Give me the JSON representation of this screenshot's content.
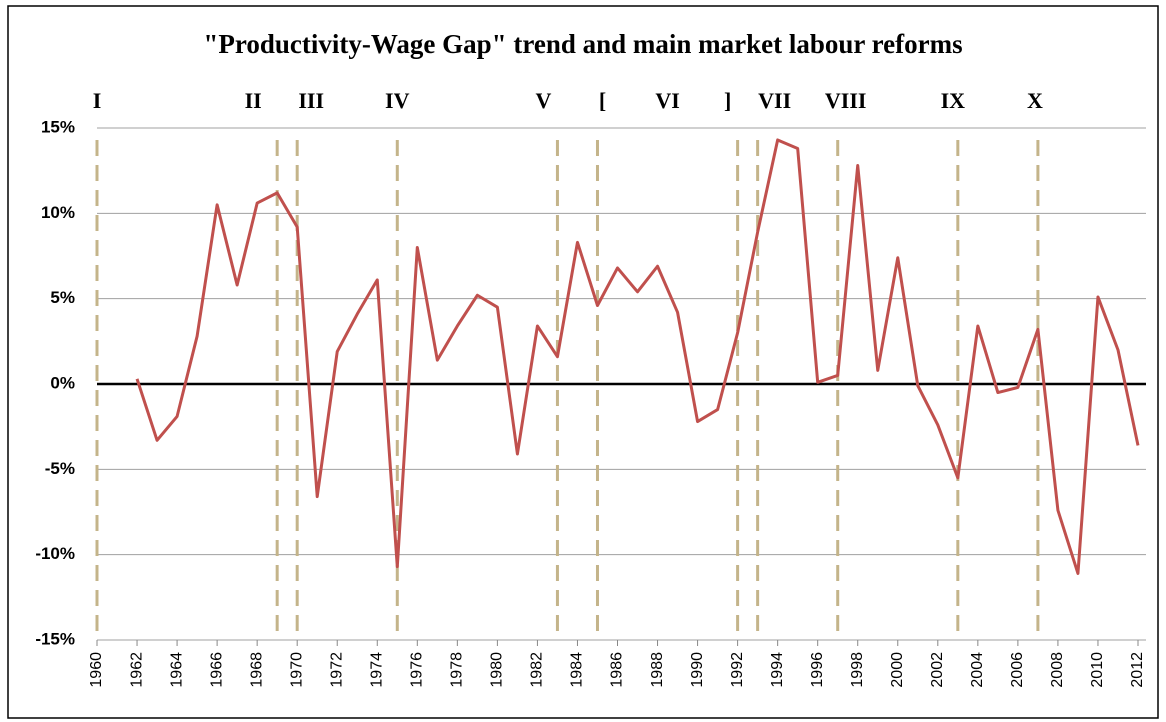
{
  "chart_data": {
    "type": "line",
    "title": "\"Productivity-Wage Gap\" trend and main market labour reforms",
    "xlim": [
      1960,
      2012
    ],
    "xticks": [
      1960,
      1962,
      1964,
      1966,
      1968,
      1970,
      1972,
      1974,
      1976,
      1978,
      1980,
      1982,
      1984,
      1986,
      1988,
      1990,
      1992,
      1994,
      1996,
      1998,
      2000,
      2002,
      2004,
      2006,
      2008,
      2010,
      2012
    ],
    "ylim": [
      -15,
      15
    ],
    "yticks": [
      {
        "value": -15,
        "label": "-15%"
      },
      {
        "value": -10,
        "label": "-10%"
      },
      {
        "value": -5,
        "label": "-5%"
      },
      {
        "value": 0,
        "label": "0%"
      },
      {
        "value": 5,
        "label": "5%"
      },
      {
        "value": 10,
        "label": "10%"
      },
      {
        "value": 15,
        "label": "15%"
      }
    ],
    "grid": true,
    "series": [
      {
        "color": "#c0504d",
        "x": [
          1962,
          1963,
          1964,
          1965,
          1966,
          1967,
          1968,
          1969,
          1970,
          1971,
          1972,
          1973,
          1974,
          1975,
          1976,
          1977,
          1978,
          1979,
          1980,
          1981,
          1982,
          1983,
          1984,
          1985,
          1986,
          1987,
          1988,
          1989,
          1990,
          1991,
          1992,
          1993,
          1994,
          1995,
          1996,
          1997,
          1998,
          1999,
          2000,
          2001,
          2002,
          2003,
          2004,
          2005,
          2006,
          2007,
          2008,
          2009,
          2010,
          2011,
          2012
        ],
        "values": [
          0.3,
          -3.3,
          -1.9,
          2.8,
          10.5,
          5.8,
          10.6,
          11.2,
          9.2,
          -6.6,
          1.9,
          4.1,
          6.1,
          -10.7,
          8.0,
          1.4,
          3.4,
          5.2,
          4.5,
          -4.1,
          3.4,
          1.6,
          8.3,
          4.6,
          6.8,
          5.4,
          6.9,
          4.2,
          -2.2,
          -1.5,
          3.0,
          8.9,
          14.3,
          13.8,
          0.1,
          0.5,
          12.8,
          0.8,
          7.4,
          -0.1,
          -2.4,
          -5.5,
          3.4,
          -0.5,
          -0.2,
          3.2,
          -7.4,
          -11.1,
          5.1,
          2.0,
          -3.6
        ]
      }
    ],
    "reforms": [
      {
        "label": "I",
        "x": 1960
      },
      {
        "label": "II",
        "x": 1969
      },
      {
        "label": "III",
        "x": 1970
      },
      {
        "label": "IV",
        "x": 1975
      },
      {
        "label": "V",
        "x": 1983
      },
      {
        "label": "[",
        "x": 1985
      },
      {
        "label": "]",
        "x": 1992
      },
      {
        "label": "VII",
        "x": 1993
      },
      {
        "label": "VIII",
        "x": 1997
      },
      {
        "label": "IX",
        "x": 2003
      },
      {
        "label": "X",
        "x": 2007
      }
    ],
    "reform_span": {
      "label": "VI",
      "from": 1985,
      "to": 1992
    },
    "reform_color": "#c4b48a"
  }
}
